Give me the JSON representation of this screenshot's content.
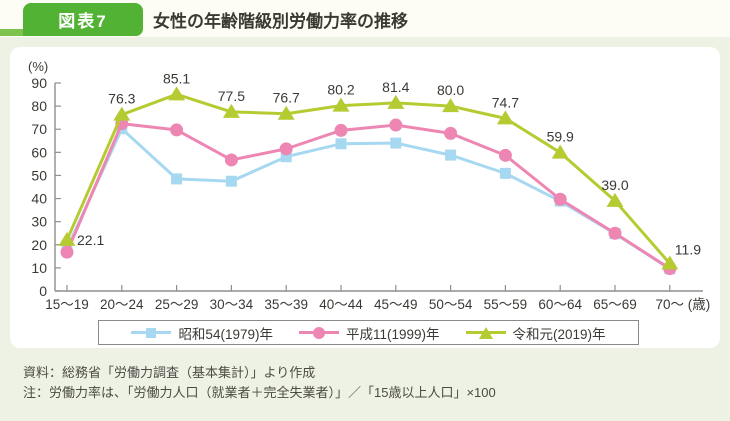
{
  "header": {
    "badge_label": "図表7",
    "title": "女性の年齢階級別労働力率の推移"
  },
  "chart_data": {
    "type": "line",
    "title": "女性の年齢階級別労働力率の推移",
    "y_unit_label": "(%)",
    "x_unit_label": "(歳)",
    "ylim": [
      0,
      90
    ],
    "ytick_step": 10,
    "grid": false,
    "legend_position": "bottom",
    "categories": [
      "15～19",
      "20～24",
      "25～29",
      "30～34",
      "35～39",
      "40～44",
      "45～49",
      "50～54",
      "55～59",
      "60～64",
      "65～69",
      "70～"
    ],
    "series": [
      {
        "name": "昭和54(1979)年",
        "marker": "square",
        "color": "#a7d8f2",
        "values": [
          18.4,
          70.2,
          48.5,
          47.5,
          58.1,
          63.7,
          64.0,
          58.8,
          50.9,
          38.9,
          24.8,
          9.6
        ]
      },
      {
        "name": "平成11(1999)年",
        "marker": "circle",
        "color": "#ee86b4",
        "values": [
          16.8,
          72.4,
          69.7,
          56.7,
          61.5,
          69.5,
          71.8,
          68.2,
          58.7,
          39.7,
          25.0,
          9.7
        ]
      },
      {
        "name": "令和元(2019)年",
        "marker": "triangle",
        "color": "#b6cb31",
        "values": [
          22.1,
          76.3,
          85.1,
          77.5,
          76.7,
          80.2,
          81.4,
          80.0,
          74.7,
          59.9,
          39.0,
          11.9
        ],
        "point_labels": [
          "22.1",
          "76.3",
          "85.1",
          "77.5",
          "76.7",
          "80.2",
          "81.4",
          "80.0",
          "74.7",
          "59.9",
          "39.0",
          "11.9"
        ]
      }
    ]
  },
  "footer": {
    "source": "資料：総務省「労働力調査（基本集計）」より作成",
    "note": "注：労働力率は、「労働力人口（就業者＋完全失業者）」／「15歳以上人口」×100"
  },
  "colors": {
    "badge": "#52b233",
    "header_rule": "#7cc24d",
    "page_bg": "#eef2e4",
    "panel_bg": "#ffffff",
    "axis": "#8f8f8f",
    "text": "#3a3a35"
  }
}
